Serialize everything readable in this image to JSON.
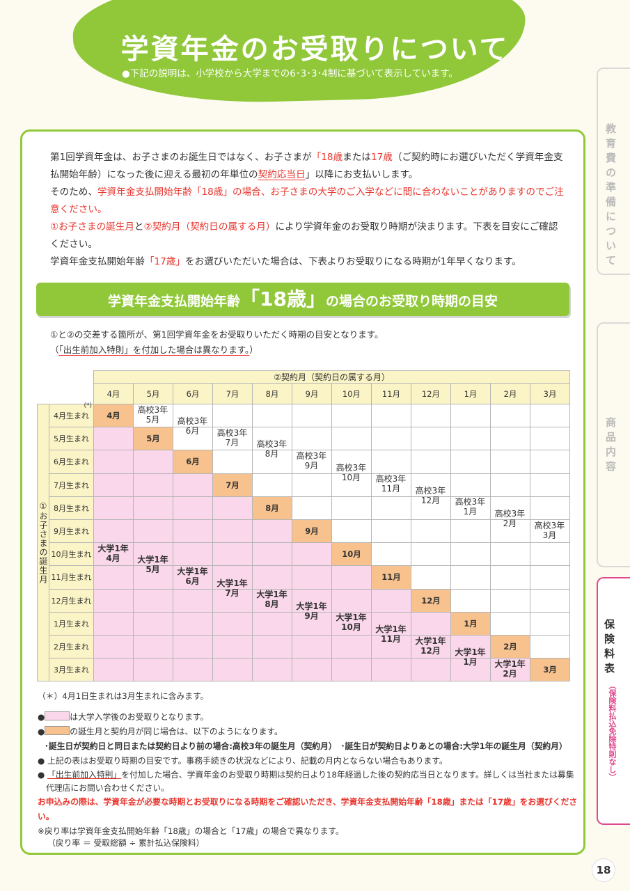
{
  "header": {
    "title": "学資年金のお受取りについて",
    "subtitle": "●下記の説明は、小学校から大学までの6･3･3･4制に基づいて表示しています。"
  },
  "side_tabs": [
    {
      "label": "教育費の準備について",
      "sub": ""
    },
    {
      "label": "商品内容",
      "sub": ""
    },
    {
      "label": "保険料表",
      "sub": "（保険料払込免除特則なし）"
    }
  ],
  "page_number": "18",
  "intro": {
    "p1a": "第1回学資年金は、お子さまのお誕生日ではなく、お子さまが",
    "p1b": "「18歳",
    "p1c": "または",
    "p1d": "17歳",
    "p1e": "（ご契約時にお選びいただく学資年金支払開始年齢）になった後に迎える最初の年単位の",
    "p1f": "契約応当日",
    "p1g": "」以降にお支払いします。",
    "p2a": "そのため、",
    "p2b": "学資年金支払開始年齢「18歳」の場合、お子さまの大学のご入学などに間に合わないことがありますのでご注意ください。",
    "p3a": "①お子さまの誕生月",
    "p3b": "と",
    "p3c": "②契約月（契約日の属する月）",
    "p3d": "により学資年金のお受取り時期が決まります。下表を目安にご確認ください。",
    "p4a": "学資年金支払開始年齢",
    "p4b": "「17歳」",
    "p4c": "をお選びいただいた場合は、下表よりお受取りになる時期が1年早くなります。"
  },
  "banner": {
    "pre": "学資年金支払開始年齢",
    "big": "「18歳」",
    "post": "の場合のお受取り時期の目安"
  },
  "table_intro": {
    "line1": "①と②の交差する箇所が、第1回学資年金をお受取りいただく時期の目安となります。",
    "line2a": "（",
    "line2b": "「出生前加入特則」を付加した場合は異なります。",
    "line2c": "）"
  },
  "table": {
    "col_group": "②契約月（契約日の属する月）",
    "row_group": "①お子さまの誕生月",
    "months": [
      "4月",
      "5月",
      "6月",
      "7月",
      "8月",
      "9月",
      "10月",
      "11月",
      "12月",
      "1月",
      "2月",
      "3月"
    ],
    "rows": [
      "4月生まれ",
      "5月生まれ",
      "6月生まれ",
      "7月生まれ",
      "8月生まれ",
      "9月生まれ",
      "10月生まれ",
      "11月生まれ",
      "12月生まれ",
      "1月生まれ",
      "2月生まれ",
      "3月生まれ"
    ],
    "asterisk": "(*)",
    "hs_label": "高校3年",
    "uni_label": "大学1年"
  },
  "footnotes": {
    "f1": "（＊）4月1日生まれは3月生まれに含みます。",
    "f2_bullet": "●",
    "f2": "は大学入学後のお受取りとなります。",
    "f3_bullet": "●",
    "f3": "の誕生月と契約月が同じ場合は、以下のようになります。",
    "f4": "･誕生日が契約日と同日または契約日より前の場合:高校3年の誕生月（契約月）　･誕生日が契約日よりあとの場合:大学1年の誕生月（契約月）",
    "f5": "● 上記の表はお受取り時期の目安です。事務手続きの状況などにより、記載の月内とならない場合もあります。",
    "f6a": "● ",
    "f6b": "「出生前加入特則」",
    "f6c": "を付加した場合、学資年金のお受取り時期は契約日より18年経過した後の契約応当日となります。詳しくは当社または募集代理店にお問い合わせください。",
    "f7": "お申込みの際は、学資年金が必要な時期とお受取りになる時期をご確認いただき、学資年金支払開始年齢「18歳」または「17歳」をお選びください。",
    "f8": "※戻り率は学資年金支払開始年齢「18歳」の場合と「17歳」の場合で異なります。",
    "f9": "（戻り率 ＝ 受取総額 ÷ 累計払込保険料）"
  }
}
